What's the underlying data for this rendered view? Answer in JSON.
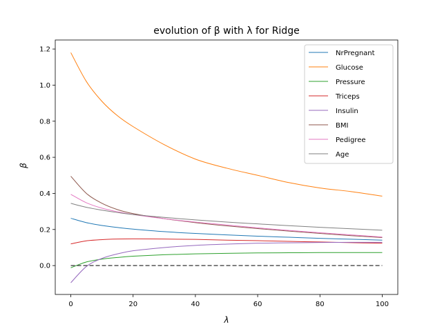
{
  "chart_data": {
    "type": "line",
    "title": "evolution of β with λ for Ridge",
    "xlabel": "λ",
    "ylabel": "β",
    "xlim": [
      -5,
      105
    ],
    "ylim": [
      -0.16,
      1.25
    ],
    "xticks": [
      0,
      20,
      40,
      60,
      80,
      100
    ],
    "yticks": [
      0.0,
      0.2,
      0.4,
      0.6,
      0.8,
      1.0,
      1.2
    ],
    "xtick_labels": [
      "0",
      "20",
      "40",
      "60",
      "80",
      "100"
    ],
    "ytick_labels": [
      "0.0",
      "0.2",
      "0.4",
      "0.6",
      "0.8",
      "1.0",
      "1.2"
    ],
    "legend_position": "top-right",
    "grid": false,
    "x": [
      0,
      5,
      10,
      15,
      20,
      30,
      40,
      50,
      60,
      70,
      80,
      90,
      100
    ],
    "series": [
      {
        "name": "NrPregnant",
        "color": "#1f77b4",
        "values": [
          0.262,
          0.238,
          0.222,
          0.211,
          0.202,
          0.188,
          0.178,
          0.17,
          0.163,
          0.157,
          0.151,
          0.146,
          0.141
        ]
      },
      {
        "name": "Glucose",
        "color": "#ff7f0e",
        "values": [
          1.18,
          1.02,
          0.91,
          0.83,
          0.77,
          0.67,
          0.59,
          0.54,
          0.5,
          0.46,
          0.43,
          0.41,
          0.385
        ]
      },
      {
        "name": "Pressure",
        "color": "#2ca02c",
        "values": [
          -0.012,
          0.02,
          0.036,
          0.045,
          0.052,
          0.06,
          0.065,
          0.068,
          0.07,
          0.071,
          0.072,
          0.072,
          0.072
        ]
      },
      {
        "name": "Triceps",
        "color": "#d62728",
        "values": [
          0.12,
          0.137,
          0.144,
          0.147,
          0.148,
          0.147,
          0.145,
          0.141,
          0.138,
          0.134,
          0.131,
          0.127,
          0.124
        ]
      },
      {
        "name": "Insulin",
        "color": "#9467bd",
        "values": [
          -0.095,
          -0.005,
          0.04,
          0.065,
          0.082,
          0.1,
          0.112,
          0.119,
          0.124,
          0.126,
          0.128,
          0.129,
          0.129
        ]
      },
      {
        "name": "BMI",
        "color": "#8c564b",
        "values": [
          0.495,
          0.4,
          0.345,
          0.31,
          0.288,
          0.26,
          0.238,
          0.22,
          0.205,
          0.191,
          0.178,
          0.166,
          0.155
        ]
      },
      {
        "name": "Pedigree",
        "color": "#e377c2",
        "values": [
          0.395,
          0.348,
          0.318,
          0.298,
          0.283,
          0.26,
          0.241,
          0.225,
          0.209,
          0.195,
          0.182,
          0.17,
          0.158
        ]
      },
      {
        "name": "Age",
        "color": "#7f7f7f",
        "values": [
          0.345,
          0.323,
          0.307,
          0.294,
          0.283,
          0.267,
          0.253,
          0.241,
          0.231,
          0.221,
          0.212,
          0.204,
          0.196
        ]
      }
    ],
    "reference_line": {
      "y": 0.0,
      "x_range": [
        0,
        100
      ],
      "color": "#555555",
      "style": "dashed"
    }
  }
}
